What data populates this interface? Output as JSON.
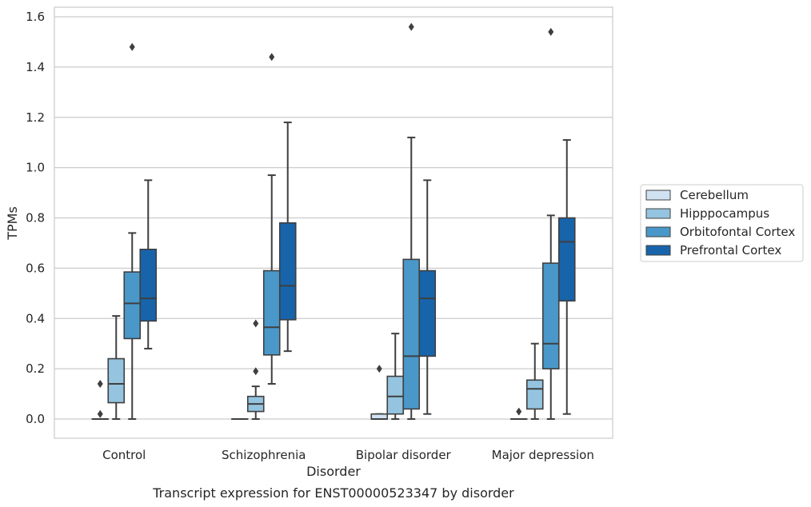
{
  "chart_data": {
    "type": "box",
    "title": "Transcript expression for ENST00000523347 by disorder",
    "xlabel": "Disorder",
    "ylabel": "TPMs",
    "ylim": [
      -0.075,
      1.64
    ],
    "yticks": [
      "0.0",
      "0.2",
      "0.4",
      "0.6",
      "0.8",
      "1.0",
      "1.2",
      "1.4",
      "1.6"
    ],
    "ytick_values": [
      0,
      0.2,
      0.4,
      0.6,
      0.8,
      1.0,
      1.2,
      1.4,
      1.6
    ],
    "grid": true,
    "legend_position": "right",
    "categories": [
      "Control",
      "Schizophrenia",
      "Bipolar disorder",
      "Major depression"
    ],
    "series": [
      {
        "name": "Cerebellum",
        "color": "#d0e1f2",
        "boxes": [
          {
            "whisker_low": 0,
            "q1": 0,
            "median": 0,
            "q3": 0,
            "whisker_high": 0,
            "outliers": [
              0.02,
              0.14
            ]
          },
          {
            "whisker_low": 0,
            "q1": 0,
            "median": 0,
            "q3": 0,
            "whisker_high": 0,
            "outliers": []
          },
          {
            "whisker_low": 0,
            "q1": 0,
            "median": 0,
            "q3": 0.02,
            "whisker_high": 0.02,
            "outliers": [
              0.2
            ]
          },
          {
            "whisker_low": 0,
            "q1": 0,
            "median": 0,
            "q3": 0,
            "whisker_high": 0,
            "outliers": [
              0.03
            ]
          }
        ]
      },
      {
        "name": "Hipppocampus",
        "color": "#94c4df",
        "boxes": [
          {
            "whisker_low": 0,
            "q1": 0.065,
            "median": 0.14,
            "q3": 0.24,
            "whisker_high": 0.41,
            "outliers": []
          },
          {
            "whisker_low": 0,
            "q1": 0.03,
            "median": 0.06,
            "q3": 0.09,
            "whisker_high": 0.13,
            "outliers": [
              0.19,
              0.38
            ]
          },
          {
            "whisker_low": 0,
            "q1": 0.02,
            "median": 0.09,
            "q3": 0.17,
            "whisker_high": 0.34,
            "outliers": []
          },
          {
            "whisker_low": 0,
            "q1": 0.04,
            "median": 0.12,
            "q3": 0.155,
            "whisker_high": 0.3,
            "outliers": []
          }
        ]
      },
      {
        "name": "Orbitofontal Cortex",
        "color": "#4a98c9",
        "boxes": [
          {
            "whisker_low": 0,
            "q1": 0.32,
            "median": 0.46,
            "q3": 0.585,
            "whisker_high": 0.74,
            "outliers": [
              1.48
            ]
          },
          {
            "whisker_low": 0.14,
            "q1": 0.255,
            "median": 0.365,
            "q3": 0.59,
            "whisker_high": 0.97,
            "outliers": [
              1.44
            ]
          },
          {
            "whisker_low": 0,
            "q1": 0.04,
            "median": 0.25,
            "q3": 0.635,
            "whisker_high": 1.12,
            "outliers": [
              1.56
            ]
          },
          {
            "whisker_low": 0,
            "q1": 0.2,
            "median": 0.3,
            "q3": 0.62,
            "whisker_high": 0.81,
            "outliers": [
              1.54
            ]
          }
        ]
      },
      {
        "name": "Prefrontal Cortex",
        "color": "#1764ab",
        "boxes": [
          {
            "whisker_low": 0.28,
            "q1": 0.39,
            "median": 0.48,
            "q3": 0.675,
            "whisker_high": 0.95,
            "outliers": []
          },
          {
            "whisker_low": 0.27,
            "q1": 0.395,
            "median": 0.53,
            "q3": 0.78,
            "whisker_high": 1.18,
            "outliers": []
          },
          {
            "whisker_low": 0.02,
            "q1": 0.25,
            "median": 0.48,
            "q3": 0.59,
            "whisker_high": 0.95,
            "outliers": []
          },
          {
            "whisker_low": 0.02,
            "q1": 0.47,
            "median": 0.705,
            "q3": 0.8,
            "whisker_high": 1.11,
            "outliers": []
          }
        ]
      }
    ]
  }
}
